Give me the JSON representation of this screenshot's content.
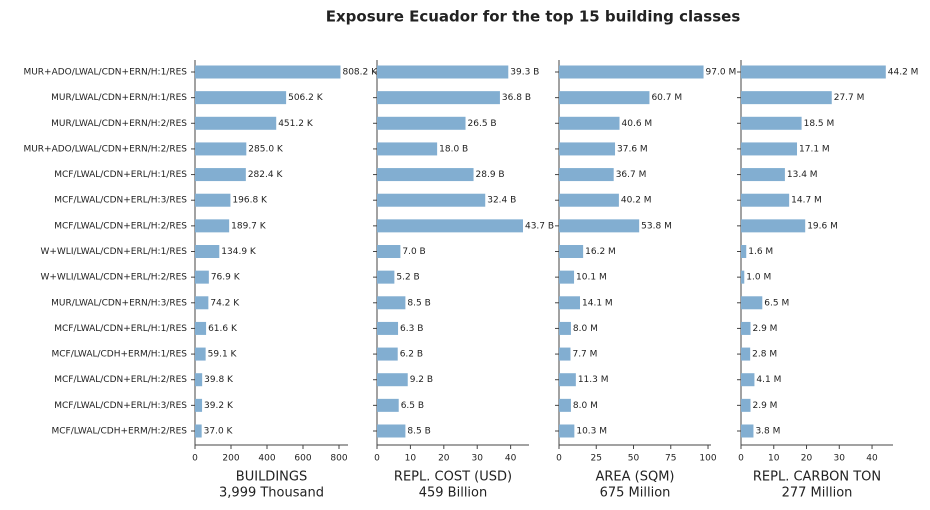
{
  "chart_data": {
    "type": "bar",
    "orientation": "horizontal",
    "title": "Exposure Ecuador for the top 15 building classes",
    "color": "#82aed1",
    "categories": [
      "MUR+ADO/LWAL/CDN+ERN/H:1/RES",
      "MUR/LWAL/CDN+ERN/H:1/RES",
      "MUR/LWAL/CDN+ERN/H:2/RES",
      "MUR+ADO/LWAL/CDN+ERN/H:2/RES",
      "MCF/LWAL/CDN+ERL/H:1/RES",
      "MCF/LWAL/CDN+ERL/H:3/RES",
      "MCF/LWAL/CDN+ERL/H:2/RES",
      "W+WLI/LWAL/CDN+ERL/H:1/RES",
      "W+WLI/LWAL/CDN+ERL/H:2/RES",
      "MUR/LWAL/CDN+ERN/H:3/RES",
      "MCF/LWAL/CDN+ERL/H:1/RES",
      "MCF/LWAL/CDH+ERM/H:1/RES",
      "MCF/LWAL/CDN+ERL/H:2/RES",
      "MCF/LWAL/CDN+ERL/H:3/RES",
      "MCF/LWAL/CDH+ERM/H:2/RES"
    ],
    "series": [
      {
        "name": "BUILDINGS",
        "total": "3,999 Thousand",
        "values": [
          808.2,
          506.2,
          451.2,
          285.0,
          282.4,
          196.8,
          189.7,
          134.9,
          76.9,
          74.2,
          61.6,
          59.1,
          39.8,
          39.2,
          37.0
        ],
        "value_labels": [
          "808.2 K",
          "506.2 K",
          "451.2 K",
          "285.0 K",
          "282.4 K",
          "196.8 K",
          "189.7 K",
          "134.9 K",
          "76.9 K",
          "74.2 K",
          "61.6 K",
          "59.1 K",
          "39.8 K",
          "39.2 K",
          "37.0 K"
        ],
        "xlim": [
          0,
          850
        ],
        "xticks": [
          0,
          200,
          400,
          600,
          800
        ]
      },
      {
        "name": "REPL. COST (USD)",
        "total": "459 Billion",
        "values": [
          39.3,
          36.8,
          26.5,
          18.0,
          28.9,
          32.4,
          43.7,
          7.0,
          5.2,
          8.5,
          6.3,
          6.2,
          9.2,
          6.5,
          8.5
        ],
        "value_labels": [
          "39.3 B",
          "36.8 B",
          "26.5 B",
          "18.0 B",
          "28.9 B",
          "32.4 B",
          "43.7 B",
          "7.0 B",
          "5.2 B",
          "8.5 B",
          "6.3 B",
          "6.2 B",
          "9.2 B",
          "6.5 B",
          "8.5 B"
        ],
        "xlim": [
          0,
          45.5
        ],
        "xticks": [
          0,
          10,
          20,
          30,
          40
        ]
      },
      {
        "name": "AREA (SQM)",
        "total": "675 Million",
        "values": [
          97.0,
          60.7,
          40.6,
          37.6,
          36.7,
          40.2,
          53.8,
          16.2,
          10.1,
          14.1,
          8.0,
          7.7,
          11.3,
          8.0,
          10.3
        ],
        "value_labels": [
          "97.0 M",
          "60.7 M",
          "40.6 M",
          "37.6 M",
          "36.7 M",
          "40.2 M",
          "53.8 M",
          "16.2 M",
          "10.1 M",
          "14.1 M",
          "8.0 M",
          "7.7 M",
          "11.3 M",
          "8.0 M",
          "10.3 M"
        ],
        "xlim": [
          0,
          102
        ],
        "xticks": [
          0,
          25,
          50,
          75,
          100
        ]
      },
      {
        "name": "REPL. CARBON TON",
        "total": "277 Million",
        "values": [
          44.2,
          27.7,
          18.5,
          17.1,
          13.4,
          14.7,
          19.6,
          1.6,
          1.0,
          6.5,
          2.9,
          2.8,
          4.1,
          2.9,
          3.8
        ],
        "value_labels": [
          "44.2 M",
          "27.7 M",
          "18.5 M",
          "17.1 M",
          "13.4 M",
          "14.7 M",
          "19.6 M",
          "1.6 M",
          "1.0 M",
          "6.5 M",
          "2.9 M",
          "2.8 M",
          "4.1 M",
          "2.9 M",
          "3.8 M"
        ],
        "xlim": [
          0,
          46.4
        ],
        "xticks": [
          0,
          10,
          20,
          30,
          40
        ]
      }
    ]
  }
}
